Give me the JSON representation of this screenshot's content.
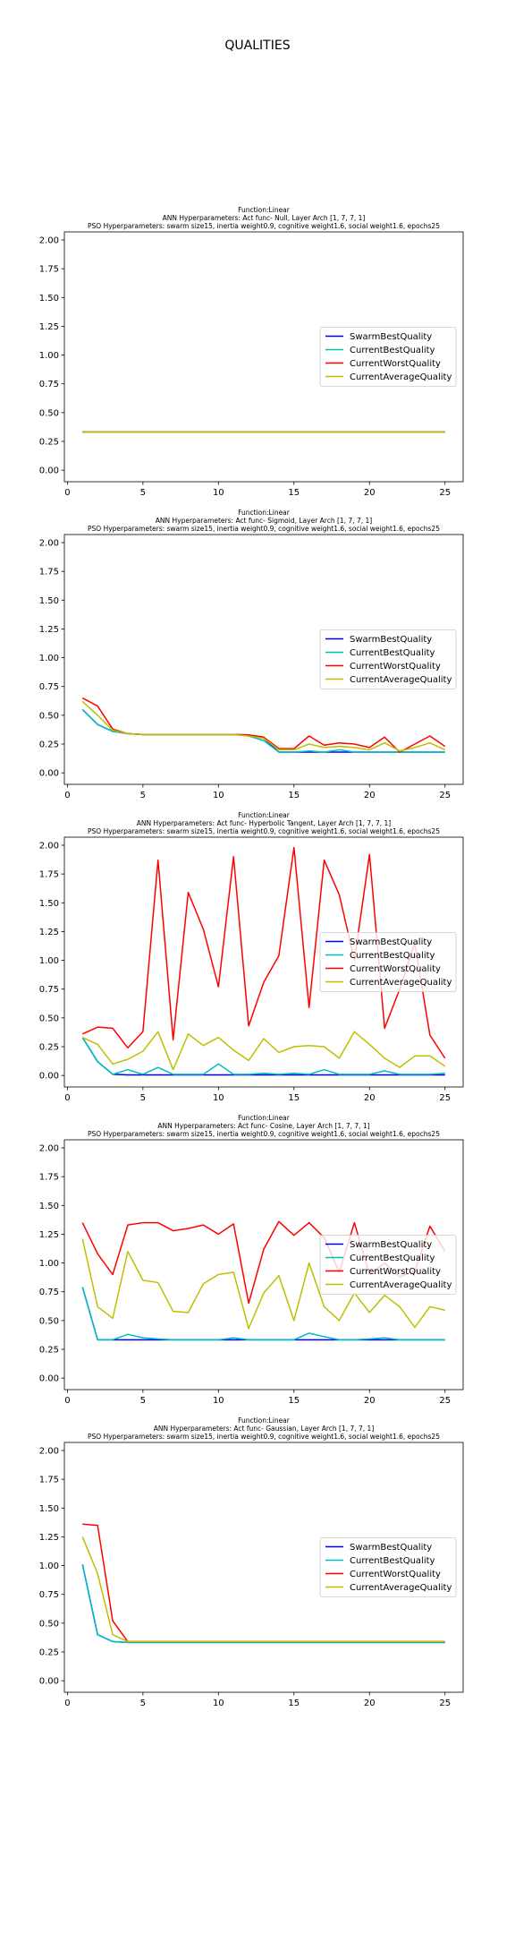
{
  "suptitle": "QUALITIES",
  "colors": {
    "SwarmBestQuality": "#0000ff",
    "CurrentBestQuality": "#00bfbf",
    "CurrentWorstQuality": "#ff0000",
    "CurrentAverageQuality": "#bfbf00"
  },
  "chart_data": [
    {
      "type": "line",
      "title": [
        "Function:Linear",
        "ANN Hyperparameters: Act func- Null, Layer Arch [1, 7, 7, 1]",
        "PSO Hyperparameters: swarm size15, inertia weight0.9, cognitive weight1.6, social weight1.6, epochs25"
      ],
      "x": [
        1,
        2,
        3,
        4,
        5,
        6,
        7,
        8,
        9,
        10,
        11,
        12,
        13,
        14,
        15,
        16,
        17,
        18,
        19,
        20,
        21,
        22,
        23,
        24,
        25
      ],
      "xticks": [
        0,
        5,
        10,
        15,
        20,
        25
      ],
      "yticks": [
        "0.00",
        "0.25",
        "0.50",
        "0.75",
        "1.00",
        "1.25",
        "1.50",
        "1.75",
        "2.00"
      ],
      "ylim": [
        -0.1,
        2.07
      ],
      "xlim": [
        -0.2,
        26.2
      ],
      "legend_position": "center-right",
      "series": [
        {
          "name": "SwarmBestQuality",
          "values": [
            0.333,
            0.333,
            0.333,
            0.333,
            0.333,
            0.333,
            0.333,
            0.333,
            0.333,
            0.333,
            0.333,
            0.333,
            0.333,
            0.333,
            0.333,
            0.333,
            0.333,
            0.333,
            0.333,
            0.333,
            0.333,
            0.333,
            0.333,
            0.333,
            0.333
          ]
        },
        {
          "name": "CurrentBestQuality",
          "values": [
            0.333,
            0.333,
            0.333,
            0.333,
            0.333,
            0.333,
            0.333,
            0.333,
            0.333,
            0.333,
            0.333,
            0.333,
            0.333,
            0.333,
            0.333,
            0.333,
            0.333,
            0.333,
            0.333,
            0.333,
            0.333,
            0.333,
            0.333,
            0.333,
            0.333
          ]
        },
        {
          "name": "CurrentWorstQuality",
          "values": [
            0.333,
            0.333,
            0.333,
            0.333,
            0.333,
            0.333,
            0.333,
            0.333,
            0.333,
            0.333,
            0.333,
            0.333,
            0.333,
            0.333,
            0.333,
            0.333,
            0.333,
            0.333,
            0.333,
            0.333,
            0.333,
            0.333,
            0.333,
            0.333,
            0.333
          ]
        },
        {
          "name": "CurrentAverageQuality",
          "values": [
            0.333,
            0.333,
            0.333,
            0.333,
            0.333,
            0.333,
            0.333,
            0.333,
            0.333,
            0.333,
            0.333,
            0.333,
            0.333,
            0.333,
            0.333,
            0.333,
            0.333,
            0.333,
            0.333,
            0.333,
            0.333,
            0.333,
            0.333,
            0.333,
            0.333
          ]
        }
      ]
    },
    {
      "type": "line",
      "title": [
        "Function:Linear",
        "ANN Hyperparameters: Act func- Sigmoid, Layer Arch [1, 7, 7, 1]",
        "PSO Hyperparameters: swarm size15, inertia weight0.9, cognitive weight1.6, social weight1.6, epochs25"
      ],
      "x": [
        1,
        2,
        3,
        4,
        5,
        6,
        7,
        8,
        9,
        10,
        11,
        12,
        13,
        14,
        15,
        16,
        17,
        18,
        19,
        20,
        21,
        22,
        23,
        24,
        25
      ],
      "xticks": [
        0,
        5,
        10,
        15,
        20,
        25
      ],
      "yticks": [
        "0.00",
        "0.25",
        "0.50",
        "0.75",
        "1.00",
        "1.25",
        "1.50",
        "1.75",
        "2.00"
      ],
      "ylim": [
        -0.1,
        2.07
      ],
      "xlim": [
        -0.2,
        26.2
      ],
      "legend_position": "center-right",
      "series": [
        {
          "name": "SwarmBestQuality",
          "values": [
            0.55,
            0.42,
            0.36,
            0.34,
            0.333,
            0.333,
            0.333,
            0.333,
            0.333,
            0.333,
            0.333,
            0.33,
            0.3,
            0.18,
            0.18,
            0.18,
            0.18,
            0.18,
            0.18,
            0.18,
            0.18,
            0.18,
            0.18,
            0.18,
            0.18
          ]
        },
        {
          "name": "CurrentBestQuality",
          "values": [
            0.55,
            0.42,
            0.36,
            0.34,
            0.333,
            0.333,
            0.333,
            0.333,
            0.333,
            0.333,
            0.333,
            0.32,
            0.28,
            0.18,
            0.18,
            0.19,
            0.18,
            0.2,
            0.18,
            0.18,
            0.18,
            0.18,
            0.18,
            0.18,
            0.18
          ]
        },
        {
          "name": "CurrentWorstQuality",
          "values": [
            0.65,
            0.58,
            0.38,
            0.34,
            0.333,
            0.333,
            0.333,
            0.333,
            0.333,
            0.333,
            0.333,
            0.33,
            0.31,
            0.21,
            0.21,
            0.32,
            0.24,
            0.26,
            0.25,
            0.22,
            0.31,
            0.18,
            0.25,
            0.32,
            0.23
          ]
        },
        {
          "name": "CurrentAverageQuality",
          "values": [
            0.62,
            0.5,
            0.37,
            0.34,
            0.333,
            0.333,
            0.333,
            0.333,
            0.333,
            0.333,
            0.333,
            0.32,
            0.3,
            0.2,
            0.2,
            0.25,
            0.22,
            0.23,
            0.22,
            0.2,
            0.26,
            0.19,
            0.22,
            0.26,
            0.2
          ]
        }
      ]
    },
    {
      "type": "line",
      "title": [
        "Function:Linear",
        "ANN Hyperparameters: Act func- Hyperbolic Tangent, Layer Arch [1, 7, 7, 1]",
        "PSO Hyperparameters: swarm size15, inertia weight0.9, cognitive weight1.6, social weight1.6, epochs25"
      ],
      "x": [
        1,
        2,
        3,
        4,
        5,
        6,
        7,
        8,
        9,
        10,
        11,
        12,
        13,
        14,
        15,
        16,
        17,
        18,
        19,
        20,
        21,
        22,
        23,
        24,
        25
      ],
      "xticks": [
        0,
        5,
        10,
        15,
        20,
        25
      ],
      "yticks": [
        "0.00",
        "0.25",
        "0.50",
        "0.75",
        "1.00",
        "1.25",
        "1.50",
        "1.75",
        "2.00"
      ],
      "ylim": [
        -0.1,
        2.07
      ],
      "xlim": [
        -0.2,
        26.2
      ],
      "legend_position": "center-right",
      "series": [
        {
          "name": "SwarmBestQuality",
          "values": [
            0.33,
            0.12,
            0.01,
            0.005,
            0.005,
            0.005,
            0.005,
            0.005,
            0.005,
            0.005,
            0.005,
            0.005,
            0.005,
            0.005,
            0.005,
            0.005,
            0.005,
            0.005,
            0.005,
            0.005,
            0.005,
            0.005,
            0.005,
            0.005,
            0.005
          ]
        },
        {
          "name": "CurrentBestQuality",
          "values": [
            0.33,
            0.12,
            0.01,
            0.05,
            0.01,
            0.07,
            0.01,
            0.01,
            0.01,
            0.1,
            0.01,
            0.01,
            0.02,
            0.01,
            0.02,
            0.01,
            0.05,
            0.01,
            0.01,
            0.01,
            0.04,
            0.01,
            0.01,
            0.01,
            0.02
          ]
        },
        {
          "name": "CurrentWorstQuality",
          "values": [
            0.36,
            0.42,
            0.41,
            0.24,
            0.38,
            1.87,
            0.31,
            1.59,
            1.27,
            0.77,
            1.9,
            0.43,
            0.81,
            1.04,
            1.98,
            0.59,
            1.87,
            1.57,
            1.0,
            1.92,
            0.41,
            0.75,
            1.15,
            0.35,
            0.15
          ]
        },
        {
          "name": "CurrentAverageQuality",
          "values": [
            0.33,
            0.27,
            0.1,
            0.14,
            0.21,
            0.38,
            0.05,
            0.36,
            0.26,
            0.33,
            0.22,
            0.13,
            0.32,
            0.2,
            0.25,
            0.26,
            0.25,
            0.15,
            0.38,
            0.27,
            0.15,
            0.07,
            0.17,
            0.17,
            0.08
          ]
        }
      ]
    },
    {
      "type": "line",
      "title": [
        "Function:Linear",
        "ANN Hyperparameters: Act func- Cosine, Layer Arch [1, 7, 7, 1]",
        "PSO Hyperparameters: swarm size15, inertia weight0.9, cognitive weight1.6, social weight1.6, epochs25"
      ],
      "x": [
        1,
        2,
        3,
        4,
        5,
        6,
        7,
        8,
        9,
        10,
        11,
        12,
        13,
        14,
        15,
        16,
        17,
        18,
        19,
        20,
        21,
        22,
        23,
        24,
        25
      ],
      "xticks": [
        0,
        5,
        10,
        15,
        20,
        25
      ],
      "yticks": [
        "0.00",
        "0.25",
        "0.50",
        "0.75",
        "1.00",
        "1.25",
        "1.50",
        "1.75",
        "2.00"
      ],
      "ylim": [
        -0.1,
        2.07
      ],
      "xlim": [
        -0.2,
        26.2
      ],
      "legend_position": "center-right",
      "series": [
        {
          "name": "SwarmBestQuality",
          "values": [
            0.79,
            0.333,
            0.333,
            0.333,
            0.333,
            0.333,
            0.333,
            0.333,
            0.333,
            0.333,
            0.333,
            0.333,
            0.333,
            0.333,
            0.333,
            0.333,
            0.333,
            0.333,
            0.333,
            0.333,
            0.333,
            0.333,
            0.333,
            0.333,
            0.333
          ]
        },
        {
          "name": "CurrentBestQuality",
          "values": [
            0.79,
            0.333,
            0.333,
            0.38,
            0.35,
            0.34,
            0.333,
            0.333,
            0.333,
            0.333,
            0.35,
            0.333,
            0.333,
            0.333,
            0.333,
            0.39,
            0.36,
            0.333,
            0.333,
            0.34,
            0.35,
            0.333,
            0.333,
            0.333,
            0.333
          ]
        },
        {
          "name": "CurrentWorstQuality",
          "values": [
            1.35,
            1.08,
            0.9,
            1.33,
            1.35,
            1.35,
            1.28,
            1.3,
            1.33,
            1.25,
            1.34,
            0.65,
            1.12,
            1.36,
            1.24,
            1.35,
            1.22,
            0.92,
            1.35,
            0.9,
            1.0,
            0.88,
            0.93,
            1.32,
            1.1
          ]
        },
        {
          "name": "CurrentAverageQuality",
          "values": [
            1.21,
            0.62,
            0.52,
            1.1,
            0.85,
            0.83,
            0.58,
            0.57,
            0.82,
            0.9,
            0.92,
            0.43,
            0.74,
            0.89,
            0.5,
            1.0,
            0.62,
            0.5,
            0.74,
            0.57,
            0.72,
            0.62,
            0.44,
            0.62,
            0.59
          ]
        }
      ]
    },
    {
      "type": "line",
      "title": [
        "Function:Linear",
        "ANN Hyperparameters: Act func- Gaussian, Layer Arch [1, 7, 7, 1]",
        "PSO Hyperparameters: swarm size15, inertia weight0.9, cognitive weight1.6, social weight1.6, epochs25"
      ],
      "x": [
        1,
        2,
        3,
        4,
        5,
        6,
        7,
        8,
        9,
        10,
        11,
        12,
        13,
        14,
        15,
        16,
        17,
        18,
        19,
        20,
        21,
        22,
        23,
        24,
        25
      ],
      "xticks": [
        0,
        5,
        10,
        15,
        20,
        25
      ],
      "yticks": [
        "0.00",
        "0.25",
        "0.50",
        "0.75",
        "1.00",
        "1.25",
        "1.50",
        "1.75",
        "2.00"
      ],
      "ylim": [
        -0.1,
        2.07
      ],
      "xlim": [
        -0.2,
        26.2
      ],
      "legend_position": "center-right",
      "series": [
        {
          "name": "SwarmBestQuality",
          "values": [
            1.01,
            0.4,
            0.34,
            0.333,
            0.333,
            0.333,
            0.333,
            0.333,
            0.333,
            0.333,
            0.333,
            0.333,
            0.333,
            0.333,
            0.333,
            0.333,
            0.333,
            0.333,
            0.333,
            0.333,
            0.333,
            0.333,
            0.333,
            0.333,
            0.333
          ]
        },
        {
          "name": "CurrentBestQuality",
          "values": [
            1.01,
            0.4,
            0.34,
            0.333,
            0.333,
            0.333,
            0.333,
            0.333,
            0.333,
            0.333,
            0.333,
            0.333,
            0.333,
            0.333,
            0.333,
            0.333,
            0.333,
            0.333,
            0.333,
            0.333,
            0.333,
            0.333,
            0.333,
            0.333,
            0.333
          ]
        },
        {
          "name": "CurrentWorstQuality",
          "values": [
            1.36,
            1.35,
            0.52,
            0.34,
            0.34,
            0.34,
            0.34,
            0.34,
            0.34,
            0.34,
            0.34,
            0.34,
            0.34,
            0.34,
            0.34,
            0.34,
            0.34,
            0.34,
            0.34,
            0.34,
            0.34,
            0.34,
            0.34,
            0.34,
            0.34
          ]
        },
        {
          "name": "CurrentAverageQuality",
          "values": [
            1.25,
            0.93,
            0.4,
            0.34,
            0.34,
            0.34,
            0.34,
            0.34,
            0.34,
            0.34,
            0.34,
            0.34,
            0.34,
            0.34,
            0.34,
            0.34,
            0.34,
            0.34,
            0.34,
            0.34,
            0.34,
            0.34,
            0.34,
            0.34,
            0.34
          ]
        }
      ]
    }
  ]
}
